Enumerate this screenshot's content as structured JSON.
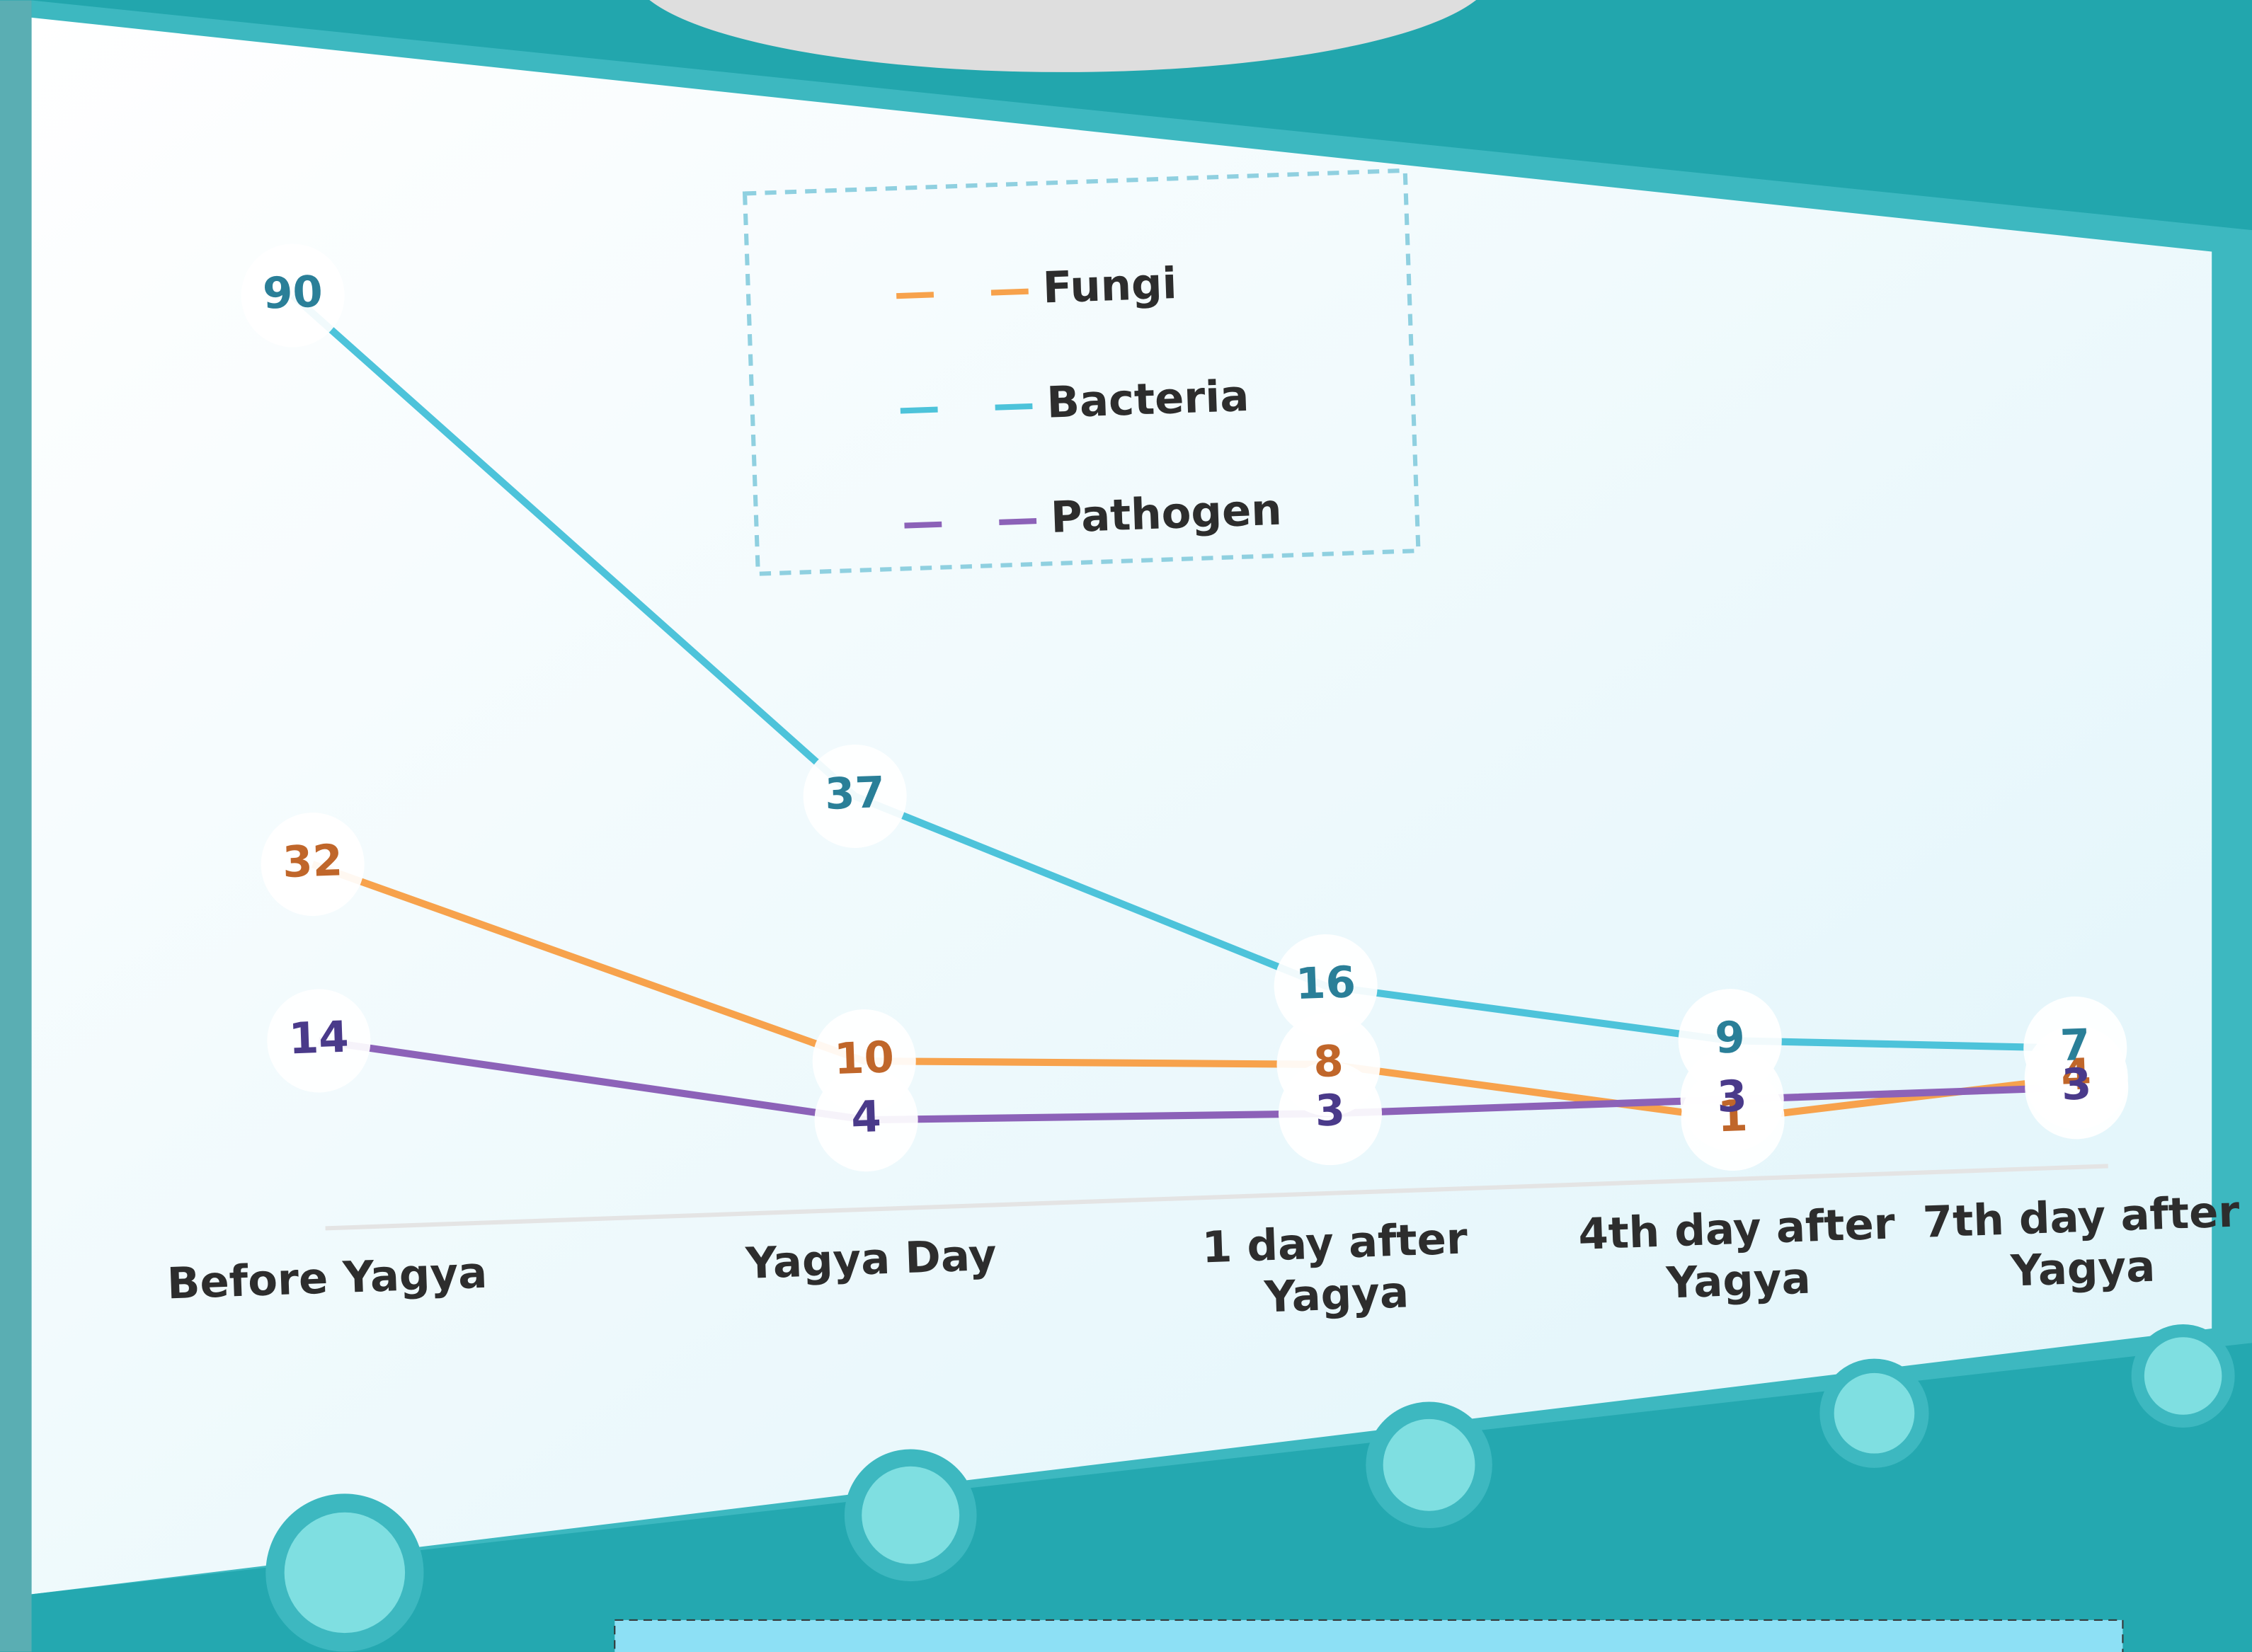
{
  "chart_data": {
    "type": "line",
    "categories": [
      "Before Yagya",
      "Yagya Day",
      "1 day after Yagya",
      "4th day after Yagya",
      "7th day after Yagya"
    ],
    "series": [
      {
        "name": "Fungi",
        "color": "#f7a24c",
        "values": [
          32,
          10,
          8,
          1,
          4
        ]
      },
      {
        "name": "Bacteria",
        "color": "#4dc3da",
        "values": [
          90,
          37,
          16,
          9,
          7
        ]
      },
      {
        "name": "Pathogen",
        "color": "#8c62b8",
        "values": [
          14,
          4,
          3,
          3,
          3
        ]
      }
    ],
    "data_labels": true
  }
}
